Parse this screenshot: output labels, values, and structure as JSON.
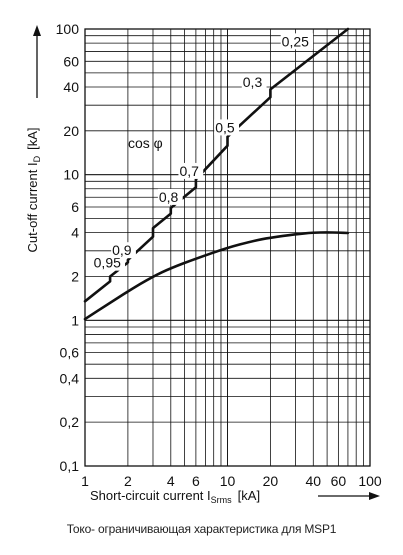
{
  "chart_data": {
    "type": "line",
    "xscale": "log",
    "yscale": "log",
    "xlim": [
      1,
      100
    ],
    "ylim": [
      0.1,
      100
    ],
    "grid": true,
    "x_ticks": [
      1,
      2,
      4,
      6,
      10,
      20,
      40,
      60,
      100
    ],
    "x_tick_labels": [
      "1",
      "2",
      "4",
      "6",
      "10",
      "20",
      "40",
      "60",
      "100"
    ],
    "y_ticks": [
      0.1,
      0.2,
      0.4,
      0.6,
      1,
      2,
      4,
      6,
      10,
      20,
      40,
      60,
      100
    ],
    "y_tick_labels": [
      "0,1",
      "0,2",
      "0,4",
      "0,6",
      "1",
      "2",
      "4",
      "6",
      "10",
      "20",
      "40",
      "60",
      "100"
    ],
    "xlabel_main": "Short-circuit current I",
    "xlabel_sub": "Srms",
    "xlabel_unit": "[kA]",
    "ylabel_main": "Cut-off current I",
    "ylabel_sub": "D",
    "ylabel_unit": "[kA]",
    "cos_phi_label": "cos φ",
    "series": [
      {
        "x": [
          1,
          1.5,
          1.5,
          2,
          2,
          3,
          3,
          4,
          4,
          6,
          6,
          10,
          10,
          20,
          20,
          70
        ],
        "y": [
          1.35,
          1.85,
          2.0,
          2.5,
          2.6,
          3.75,
          4.3,
          5.4,
          5.9,
          8.2,
          9.3,
          15.8,
          18.2,
          34,
          38.5,
          100
        ]
      },
      {
        "x": [
          1,
          1.5,
          2,
          3,
          4,
          6,
          10,
          15,
          20,
          30,
          40,
          50,
          60,
          70
        ],
        "y": [
          1.02,
          1.32,
          1.58,
          2.0,
          2.28,
          2.65,
          3.15,
          3.5,
          3.7,
          3.9,
          4.0,
          4.02,
          4.0,
          3.98
        ]
      }
    ],
    "annotations": [
      {
        "text": "0,95",
        "x": 1.15,
        "y": 2.3
      },
      {
        "text": "0,9",
        "x": 1.55,
        "y": 2.8
      },
      {
        "text": "0,8",
        "x": 3.3,
        "y": 6.5
      },
      {
        "text": "0,7",
        "x": 4.6,
        "y": 9.8
      },
      {
        "text": "0,5",
        "x": 8.2,
        "y": 19.5
      },
      {
        "text": "0,3",
        "x": 12.8,
        "y": 40
      },
      {
        "text": "0,25",
        "x": 24,
        "y": 76
      }
    ]
  },
  "caption": "Токо- ограничивающая характеристика для MSP1"
}
